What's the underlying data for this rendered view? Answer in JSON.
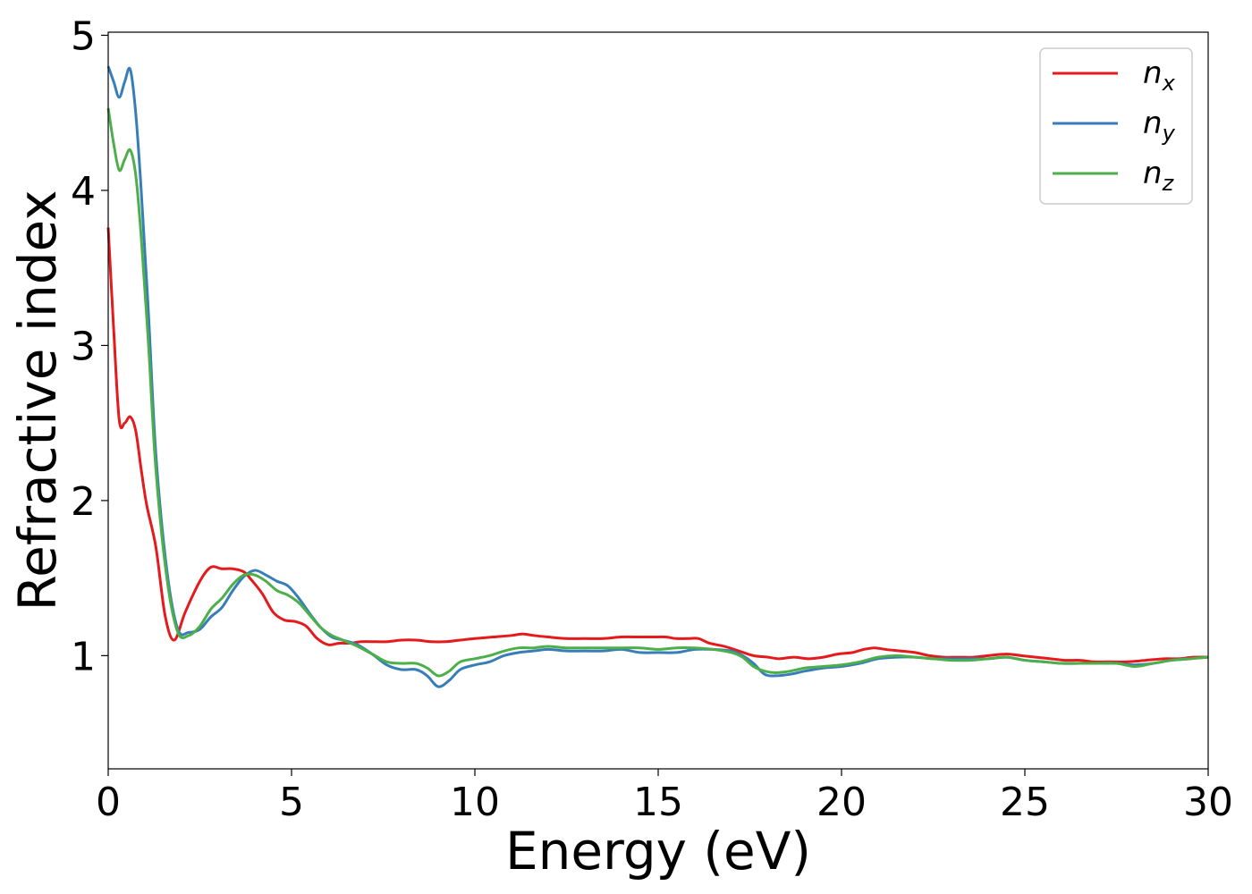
{
  "chart_data": {
    "type": "line",
    "xlabel": "Energy (eV)",
    "ylabel": "Refractive index",
    "xlim": [
      0,
      30
    ],
    "ylim": [
      0.27,
      5.02
    ],
    "xticks": [
      0,
      5,
      10,
      15,
      20,
      25,
      30
    ],
    "xtick_labels": [
      "0",
      "5",
      "10",
      "15",
      "20",
      "25",
      "30"
    ],
    "yticks": [
      1,
      2,
      3,
      4,
      5
    ],
    "ytick_labels": [
      "1",
      "2",
      "3",
      "4",
      "5"
    ],
    "grid": false,
    "legend_position": "top-right",
    "series": [
      {
        "name": "n_x",
        "label_main": "n",
        "label_sub": "x",
        "color": "#e41a1c",
        "x": [
          0,
          0.15,
          0.3,
          0.45,
          0.6,
          0.75,
          0.9,
          1.05,
          1.3,
          1.55,
          1.8,
          2.1,
          2.5,
          2.8,
          3.1,
          3.4,
          3.7,
          3.9,
          4.2,
          4.5,
          4.8,
          5.1,
          5.4,
          5.7,
          6.0,
          6.3,
          6.6,
          6.9,
          7.3,
          7.6,
          8.0,
          8.4,
          8.8,
          9.2,
          9.6,
          10.0,
          10.5,
          11.0,
          11.3,
          11.6,
          12.0,
          12.5,
          13.0,
          13.5,
          14.0,
          14.5,
          14.9,
          15.2,
          15.5,
          15.8,
          16.1,
          16.4,
          16.8,
          17.2,
          17.6,
          18.0,
          18.3,
          18.7,
          19.1,
          19.5,
          19.9,
          20.3,
          20.6,
          20.9,
          21.2,
          21.6,
          22.0,
          22.4,
          22.8,
          23.2,
          23.6,
          24.0,
          24.5,
          24.9,
          25.3,
          25.7,
          26.1,
          26.5,
          26.9,
          27.3,
          27.8,
          28.3,
          28.8,
          29.2,
          29.6,
          30.0
        ],
        "y": [
          3.76,
          3.1,
          2.52,
          2.5,
          2.54,
          2.45,
          2.2,
          1.97,
          1.7,
          1.26,
          1.1,
          1.28,
          1.48,
          1.57,
          1.56,
          1.56,
          1.54,
          1.49,
          1.4,
          1.28,
          1.23,
          1.22,
          1.19,
          1.11,
          1.07,
          1.08,
          1.08,
          1.09,
          1.09,
          1.09,
          1.1,
          1.1,
          1.09,
          1.09,
          1.1,
          1.11,
          1.12,
          1.13,
          1.14,
          1.13,
          1.12,
          1.11,
          1.11,
          1.11,
          1.12,
          1.12,
          1.12,
          1.12,
          1.11,
          1.11,
          1.11,
          1.08,
          1.06,
          1.03,
          1.0,
          0.99,
          0.98,
          0.99,
          0.98,
          0.99,
          1.01,
          1.02,
          1.04,
          1.05,
          1.04,
          1.03,
          1.02,
          1.0,
          0.99,
          0.99,
          0.99,
          1.0,
          1.01,
          1.0,
          0.99,
          0.98,
          0.97,
          0.97,
          0.96,
          0.96,
          0.96,
          0.97,
          0.98,
          0.98,
          0.99,
          0.99
        ]
      },
      {
        "name": "n_y",
        "label_main": "n",
        "label_sub": "y",
        "color": "#377eb8",
        "x": [
          0,
          0.15,
          0.3,
          0.45,
          0.6,
          0.75,
          0.9,
          1.1,
          1.3,
          1.6,
          1.9,
          2.2,
          2.5,
          2.8,
          3.1,
          3.4,
          3.7,
          4.0,
          4.3,
          4.6,
          4.9,
          5.2,
          5.5,
          5.8,
          6.1,
          6.4,
          6.8,
          7.2,
          7.6,
          8.0,
          8.4,
          8.7,
          9.0,
          9.3,
          9.6,
          10.0,
          10.4,
          10.8,
          11.2,
          11.6,
          12.0,
          12.5,
          13.0,
          13.5,
          14.0,
          14.5,
          15.0,
          15.5,
          16.0,
          16.5,
          17.0,
          17.3,
          17.6,
          17.9,
          18.2,
          18.6,
          19.0,
          19.5,
          20.0,
          20.5,
          21.0,
          21.5,
          22.0,
          22.5,
          23.0,
          23.5,
          24.0,
          24.5,
          25.0,
          25.5,
          26.0,
          26.5,
          27.0,
          27.5,
          28.0,
          28.5,
          29.0,
          29.5,
          30.0
        ],
        "y": [
          4.8,
          4.7,
          4.6,
          4.7,
          4.78,
          4.5,
          4.0,
          3.2,
          2.3,
          1.55,
          1.17,
          1.15,
          1.17,
          1.25,
          1.31,
          1.42,
          1.51,
          1.55,
          1.52,
          1.48,
          1.45,
          1.37,
          1.27,
          1.18,
          1.12,
          1.1,
          1.07,
          1.01,
          0.94,
          0.91,
          0.91,
          0.87,
          0.8,
          0.84,
          0.91,
          0.94,
          0.96,
          1.0,
          1.02,
          1.03,
          1.04,
          1.03,
          1.03,
          1.03,
          1.04,
          1.02,
          1.02,
          1.02,
          1.04,
          1.04,
          1.03,
          1.0,
          0.95,
          0.88,
          0.87,
          0.88,
          0.9,
          0.92,
          0.93,
          0.95,
          0.98,
          0.99,
          0.99,
          0.98,
          0.98,
          0.98,
          0.98,
          0.99,
          0.97,
          0.96,
          0.95,
          0.95,
          0.95,
          0.95,
          0.94,
          0.95,
          0.97,
          0.98,
          0.99
        ]
      },
      {
        "name": "n_z",
        "label_main": "n",
        "label_sub": "z",
        "color": "#4daf4a",
        "x": [
          0,
          0.15,
          0.3,
          0.45,
          0.6,
          0.75,
          0.9,
          1.1,
          1.3,
          1.6,
          1.9,
          2.2,
          2.5,
          2.8,
          3.1,
          3.4,
          3.7,
          4.0,
          4.3,
          4.6,
          4.9,
          5.2,
          5.5,
          5.8,
          6.1,
          6.4,
          6.8,
          7.2,
          7.6,
          8.0,
          8.4,
          8.7,
          9.0,
          9.3,
          9.6,
          10.0,
          10.4,
          10.8,
          11.2,
          11.6,
          12.0,
          12.5,
          13.0,
          13.5,
          14.0,
          14.5,
          15.0,
          15.5,
          16.0,
          16.5,
          17.0,
          17.3,
          17.6,
          17.9,
          18.2,
          18.6,
          19.0,
          19.5,
          20.0,
          20.5,
          21.0,
          21.5,
          22.0,
          22.5,
          23.0,
          23.5,
          24.0,
          24.5,
          25.0,
          25.5,
          26.0,
          26.5,
          27.0,
          27.5,
          28.0,
          28.5,
          29.0,
          29.5,
          30.0
        ],
        "y": [
          4.53,
          4.3,
          4.13,
          4.2,
          4.26,
          4.1,
          3.7,
          3.0,
          2.2,
          1.5,
          1.15,
          1.13,
          1.19,
          1.3,
          1.37,
          1.46,
          1.52,
          1.52,
          1.48,
          1.42,
          1.39,
          1.34,
          1.26,
          1.18,
          1.13,
          1.1,
          1.06,
          1.01,
          0.96,
          0.95,
          0.95,
          0.92,
          0.87,
          0.9,
          0.96,
          0.98,
          1.0,
          1.03,
          1.05,
          1.05,
          1.06,
          1.05,
          1.05,
          1.05,
          1.05,
          1.05,
          1.04,
          1.05,
          1.05,
          1.04,
          1.02,
          0.99,
          0.93,
          0.9,
          0.89,
          0.9,
          0.92,
          0.93,
          0.94,
          0.96,
          0.99,
          1.0,
          0.99,
          0.98,
          0.97,
          0.97,
          0.98,
          0.99,
          0.97,
          0.96,
          0.95,
          0.95,
          0.95,
          0.95,
          0.93,
          0.95,
          0.97,
          0.98,
          0.99
        ]
      }
    ]
  }
}
